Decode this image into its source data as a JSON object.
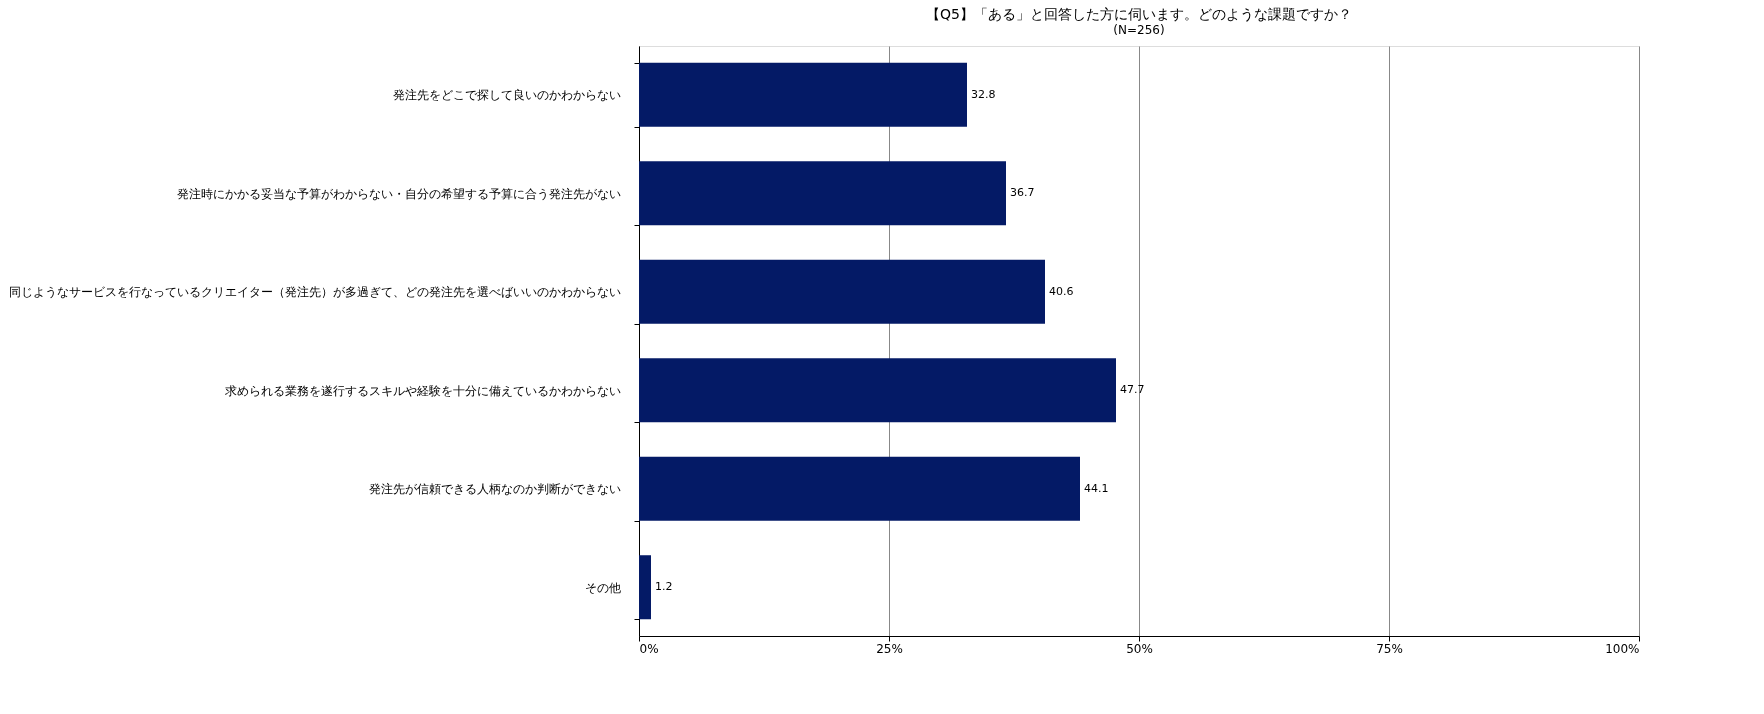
{
  "chart_data": {
    "type": "bar",
    "orientation": "horizontal",
    "title": "【Q5】「ある」と回答した方に伺います。どのような課題ですか？",
    "subtitle": "(N=256)",
    "categories": [
      "発注先をどこで探して良いのかわからない",
      "発注時にかかる妥当な予算がわからない・自分の希望する予算に合う発注先がない",
      "同じようなサービスを行なっているクリエイター（発注先）が多過ぎて、どの発注先を選べばいいのかわからない",
      "求められる業務を遂行するスキルや経験を十分に備えているかわからない",
      "発注先が信頼できる人柄なのか判断ができない",
      "その他"
    ],
    "values": [
      32.8,
      36.7,
      40.6,
      47.7,
      44.1,
      1.2
    ],
    "color": "#041a66",
    "xlim": [
      0,
      100
    ],
    "xticks": [
      {
        "value": 0,
        "label": "0%"
      },
      {
        "value": 25,
        "label": "25%"
      },
      {
        "value": 50,
        "label": "50%"
      },
      {
        "value": 75,
        "label": "75%"
      },
      {
        "value": 100,
        "label": "100%"
      }
    ],
    "grid": "x",
    "data_labels": true
  }
}
